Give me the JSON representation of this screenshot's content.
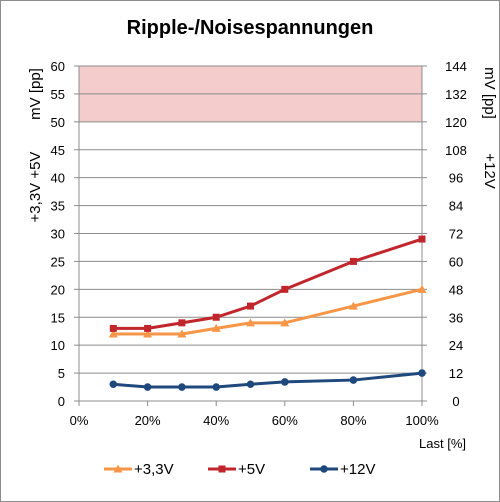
{
  "chart_data": {
    "type": "line",
    "title": "Ripple-/Noisespannungen",
    "xlabel": "Last [%]",
    "x": [
      10,
      20,
      30,
      40,
      50,
      60,
      80,
      100
    ],
    "x_ticks": [
      "0%",
      "20%",
      "40%",
      "60%",
      "80%",
      "100%"
    ],
    "xlim": [
      0,
      100
    ],
    "ylabel_left": "+3,3V  +5V",
    "ylabel_left_unit": "mV [pp]",
    "ylim_left": [
      0,
      60
    ],
    "y_ticks_left": [
      "0",
      "5",
      "10",
      "15",
      "20",
      "25",
      "30",
      "35",
      "40",
      "45",
      "50",
      "55",
      "60"
    ],
    "ylabel_right": "+12V",
    "ylabel_right_unit": "mV [pp]",
    "ylim_right": [
      0,
      144
    ],
    "y_ticks_right": [
      "0",
      "12",
      "24",
      "36",
      "48",
      "60",
      "72",
      "84",
      "96",
      "108",
      "120",
      "132",
      "144"
    ],
    "limit_band_left": [
      50,
      60
    ],
    "grid": true,
    "legend_position": "bottom",
    "series": [
      {
        "name": "+3,3V",
        "axis": "left",
        "marker": "triangle",
        "color": "#f79646",
        "values": [
          12,
          12,
          12,
          13,
          14,
          14,
          17,
          20
        ]
      },
      {
        "name": "+5V",
        "axis": "left",
        "marker": "square",
        "color": "#c0262b",
        "values": [
          13,
          13,
          14,
          15,
          17,
          20,
          25,
          29
        ]
      },
      {
        "name": "+12V",
        "axis": "right",
        "marker": "circle",
        "color": "#1f497d",
        "values": [
          7.2,
          6,
          6,
          6,
          7.2,
          8.2,
          9,
          12
        ]
      }
    ],
    "colors": {
      "band": "#f4cccc",
      "grid": "#8c8c8c"
    }
  }
}
